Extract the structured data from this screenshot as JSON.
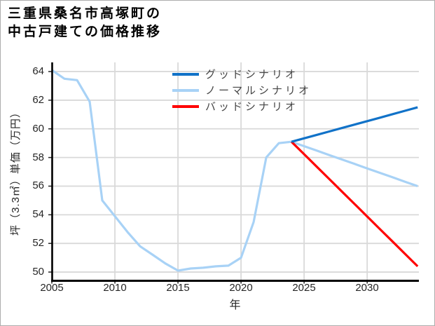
{
  "title": {
    "line1": "三重県桑名市高塚町の",
    "line2": "中古戸建ての価格推移"
  },
  "legend": {
    "items": [
      {
        "label": "グッドシナリオ",
        "color": "#1172c8"
      },
      {
        "label": "ノーマルシナリオ",
        "color": "#a8d2f6"
      },
      {
        "label": "バッドシナリオ",
        "color": "#ff0000"
      }
    ]
  },
  "colors": {
    "grid": "#d9d9d9",
    "spine": "#000000",
    "tick": "#262626",
    "good": "#1172c8",
    "normal": "#a8d2f6",
    "bad": "#ff0000"
  },
  "chart_data": {
    "type": "line",
    "title": "三重県桑名市高塚町の中古戸建ての価格推移",
    "xlabel": "年",
    "ylabel": "坪（3.3㎡）単価（万円）",
    "xlim": [
      2005,
      2034.1
    ],
    "ylim": [
      49.44,
      64.64
    ],
    "x_ticks": [
      2005,
      2010,
      2015,
      2020,
      2025,
      2030
    ],
    "y_ticks": [
      50,
      52,
      54,
      56,
      58,
      60,
      62,
      64
    ],
    "grid": true,
    "legend_position": "upper center",
    "series": [
      {
        "name": "ノーマルシナリオ",
        "color": "#a8d2f6",
        "x": [
          2005,
          2006,
          2007,
          2008,
          2009,
          2010,
          2011,
          2012,
          2013,
          2014,
          2015,
          2016,
          2017,
          2018,
          2019,
          2020,
          2021,
          2022,
          2023,
          2024,
          2025,
          2026,
          2027,
          2028,
          2029,
          2030,
          2031,
          2032,
          2033,
          2034
        ],
        "y": [
          64.1,
          63.5,
          63.4,
          61.9,
          55.0,
          53.9,
          52.8,
          51.8,
          51.2,
          50.6,
          50.1,
          50.25,
          50.3,
          50.4,
          50.45,
          51.0,
          53.5,
          58.0,
          59.0,
          59.1,
          58.79,
          58.48,
          58.17,
          57.86,
          57.55,
          57.24,
          56.93,
          56.62,
          56.31,
          56.0
        ]
      },
      {
        "name": "バッドシナリオ",
        "color": "#ff0000",
        "x": [
          2024,
          2025,
          2026,
          2027,
          2028,
          2029,
          2030,
          2031,
          2032,
          2033,
          2034
        ],
        "y": [
          59.1,
          58.23,
          57.36,
          56.49,
          55.62,
          54.75,
          53.88,
          53.01,
          52.14,
          51.27,
          50.4
        ]
      },
      {
        "name": "グッドシナリオ",
        "color": "#1172c8",
        "x": [
          2024,
          2025,
          2026,
          2027,
          2028,
          2029,
          2030,
          2031,
          2032,
          2033,
          2034
        ],
        "y": [
          59.1,
          59.34,
          59.58,
          59.82,
          60.06,
          60.3,
          60.54,
          60.78,
          61.02,
          61.26,
          61.5
        ]
      }
    ]
  }
}
